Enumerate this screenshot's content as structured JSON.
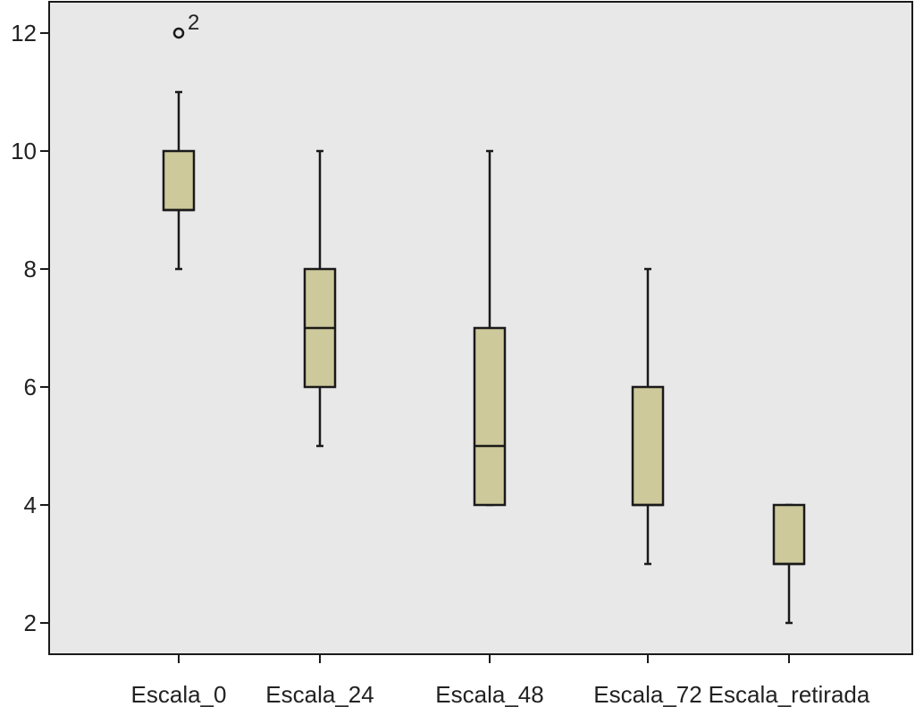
{
  "chart_data": {
    "type": "boxplot",
    "title": "",
    "xlabel": "",
    "ylabel": "",
    "ylim": [
      1.5,
      12.5
    ],
    "y_ticks": [
      2,
      4,
      6,
      8,
      10,
      12
    ],
    "grid": false,
    "categories": [
      "Escala_0",
      "Escala_24",
      "Escala_48",
      "Escala_72",
      "Escala_retirada"
    ],
    "boxes": [
      {
        "category": "Escala_0",
        "whisker_low": 8,
        "q1": 9,
        "median": 9,
        "q3": 10,
        "whisker_high": 11,
        "outliers": [
          {
            "value": 12,
            "label": "2"
          }
        ]
      },
      {
        "category": "Escala_24",
        "whisker_low": 5,
        "q1": 6,
        "median": 7,
        "q3": 8,
        "whisker_high": 10,
        "outliers": []
      },
      {
        "category": "Escala_48",
        "whisker_low": 4,
        "q1": 4,
        "median": 5,
        "q3": 7,
        "whisker_high": 10,
        "outliers": []
      },
      {
        "category": "Escala_72",
        "whisker_low": 3,
        "q1": 4,
        "median": 4,
        "q3": 6,
        "whisker_high": 8,
        "outliers": []
      },
      {
        "category": "Escala_retirada",
        "whisker_low": 2,
        "q1": 3,
        "median": 3,
        "q3": 4,
        "whisker_high": 4,
        "outliers": []
      }
    ],
    "colors": {
      "plot_background": "#e8e8e8",
      "box_fill": "#cdc99b",
      "line": "#1a1a1a"
    }
  }
}
